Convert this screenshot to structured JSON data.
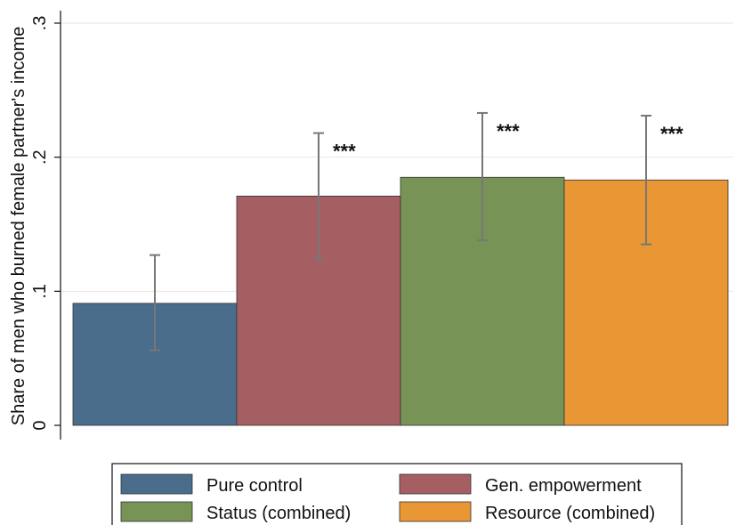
{
  "chart_data": {
    "type": "bar",
    "title": "",
    "xlabel": "",
    "ylabel": "Share of men who burned female partner's income",
    "ylim": [
      0,
      0.3
    ],
    "yticks": [
      {
        "value": 0,
        "label": "0"
      },
      {
        "value": 0.1,
        "label": ".1"
      },
      {
        "value": 0.2,
        "label": ".2"
      },
      {
        "value": 0.3,
        "label": ".3"
      }
    ],
    "grid": true,
    "legend_position": "bottom",
    "series": [
      {
        "name": "Pure control",
        "value": 0.091,
        "ci_low": 0.056,
        "ci_high": 0.127,
        "significance": "",
        "color": "#4a6d8c"
      },
      {
        "name": "Gen. empowerment",
        "value": 0.171,
        "ci_low": 0.124,
        "ci_high": 0.218,
        "significance": "***",
        "color": "#a55f63"
      },
      {
        "name": "Status (combined)",
        "value": 0.185,
        "ci_low": 0.138,
        "ci_high": 0.233,
        "significance": "***",
        "color": "#779356"
      },
      {
        "name": "Resource (combined)",
        "value": 0.183,
        "ci_low": 0.135,
        "ci_high": 0.231,
        "significance": "***",
        "color": "#e99635"
      }
    ]
  }
}
